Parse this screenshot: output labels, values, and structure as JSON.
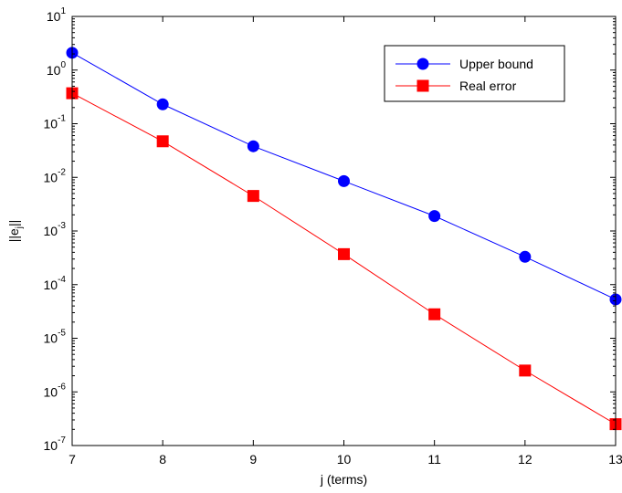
{
  "chart_data": {
    "type": "line",
    "xlabel": "j (terms)",
    "ylabel": "||e_j||",
    "ylabel_base": "||e",
    "ylabel_sub": "j",
    "ylabel_end": "||",
    "y_scale": "log",
    "xlim": [
      7,
      13
    ],
    "ylim": [
      1e-07,
      10
    ],
    "x_ticks": [
      "7",
      "8",
      "9",
      "10",
      "11",
      "12",
      "13"
    ],
    "y_tick_exponents": [
      "1",
      "0",
      "-1",
      "-2",
      "-3",
      "-4",
      "-5",
      "-6",
      "-7"
    ],
    "y_tick_base": "10",
    "grid": false,
    "legend_placement": "top-right",
    "x": [
      7,
      8,
      9,
      10,
      11,
      12,
      13
    ],
    "series": [
      {
        "name": "Upper bound",
        "color": "#0000ff",
        "marker": "circle",
        "values": [
          2.1,
          0.23,
          0.038,
          0.0085,
          0.0019,
          0.00033,
          5.3e-05
        ]
      },
      {
        "name": "Real error",
        "color": "#ff0000",
        "marker": "square",
        "values": [
          0.37,
          0.047,
          0.0045,
          0.00037,
          2.8e-05,
          2.5e-06,
          2.5e-07
        ]
      }
    ]
  }
}
